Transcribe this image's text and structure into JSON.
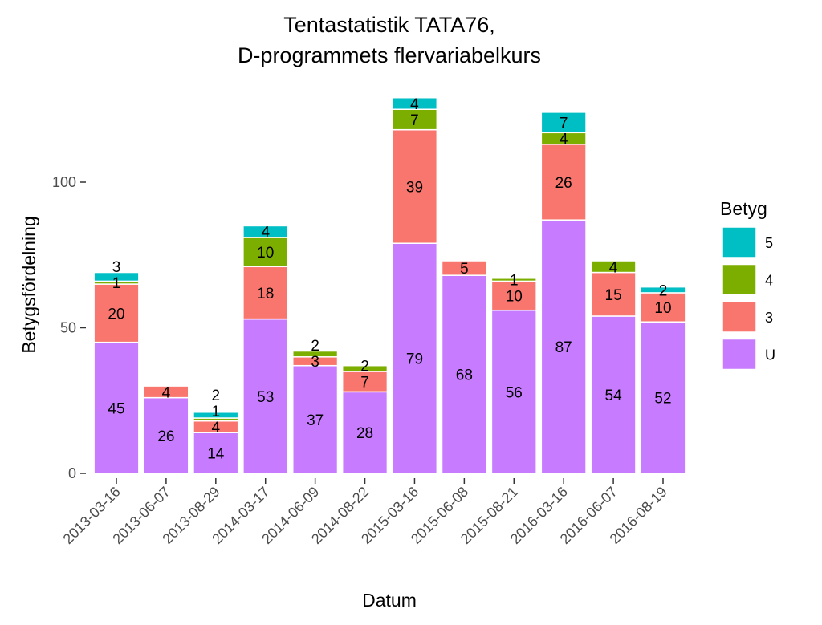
{
  "chart_data": {
    "type": "bar",
    "stacked": true,
    "title": "Tentastatistik TATA76,",
    "subtitle": "D-programmets flervariabelkurs",
    "xlabel": "Datum",
    "ylabel": "Betygsfördelning",
    "ylim": [
      0,
      130
    ],
    "yticks": [
      0,
      50,
      100
    ],
    "grid": false,
    "legend": {
      "title": "Betyg",
      "placement": "right",
      "entries": [
        "5",
        "4",
        "3",
        "U"
      ]
    },
    "categories": [
      "2013-03-16",
      "2013-06-07",
      "2013-08-29",
      "2014-03-17",
      "2014-06-09",
      "2014-08-22",
      "2015-03-16",
      "2015-06-08",
      "2015-08-21",
      "2016-03-16",
      "2016-06-07",
      "2016-08-19"
    ],
    "series": [
      {
        "name": "U",
        "color": "#C77CFF",
        "values": [
          45,
          26,
          14,
          53,
          37,
          28,
          79,
          68,
          56,
          87,
          54,
          52
        ]
      },
      {
        "name": "3",
        "color": "#F8766D",
        "values": [
          20,
          4,
          4,
          18,
          3,
          7,
          39,
          5,
          10,
          26,
          15,
          10
        ]
      },
      {
        "name": "4",
        "color": "#7CAE00",
        "values": [
          1,
          0,
          1,
          10,
          2,
          2,
          7,
          0,
          1,
          4,
          4,
          0
        ]
      },
      {
        "name": "5",
        "color": "#00BFC4",
        "values": [
          3,
          0,
          2,
          4,
          0,
          0,
          4,
          0,
          0,
          7,
          0,
          2
        ]
      }
    ]
  }
}
